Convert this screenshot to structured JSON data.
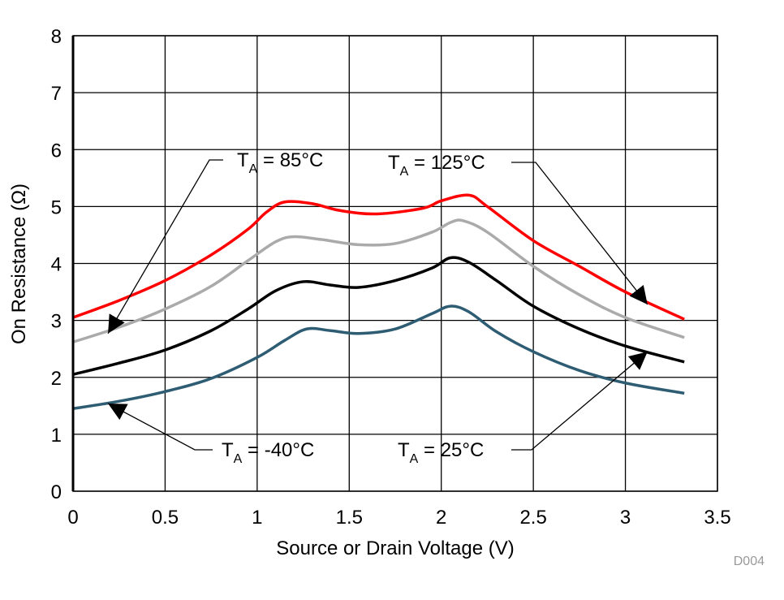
{
  "chart_data": {
    "type": "line",
    "title": "",
    "xlabel": "Source or Drain Voltage (V)",
    "ylabel": "On Resistance (Ω)",
    "xlim": [
      0,
      3.5
    ],
    "ylim": [
      0,
      8
    ],
    "xticks": [
      "0",
      "0.5",
      "1",
      "1.5",
      "2",
      "2.5",
      "3",
      "3.5"
    ],
    "yticks": [
      "0",
      "1",
      "2",
      "3",
      "4",
      "5",
      "6",
      "7",
      "8"
    ],
    "grid": true,
    "figure_code": "D004",
    "series": [
      {
        "name": "TA = 125°C",
        "color": "#ff0000",
        "x": [
          0,
          0.25,
          0.5,
          0.75,
          0.95,
          1.05,
          1.15,
          1.3,
          1.45,
          1.65,
          1.9,
          2.0,
          2.15,
          2.25,
          2.5,
          2.75,
          3.0,
          3.32
        ],
        "y": [
          3.05,
          3.35,
          3.7,
          4.15,
          4.6,
          4.9,
          5.08,
          5.05,
          4.93,
          4.87,
          4.97,
          5.1,
          5.2,
          5.0,
          4.4,
          3.95,
          3.5,
          3.02
        ]
      },
      {
        "name": "TA = 85°C",
        "color": "#aaaaaa",
        "x": [
          0,
          0.25,
          0.5,
          0.75,
          0.95,
          1.1,
          1.2,
          1.35,
          1.55,
          1.75,
          1.95,
          2.05,
          2.12,
          2.25,
          2.5,
          2.75,
          3.0,
          3.32
        ],
        "y": [
          2.62,
          2.88,
          3.2,
          3.6,
          4.05,
          4.38,
          4.47,
          4.42,
          4.33,
          4.35,
          4.55,
          4.72,
          4.75,
          4.55,
          3.95,
          3.45,
          3.05,
          2.7
        ]
      },
      {
        "name": "TA = 25°C",
        "color": "#000000",
        "x": [
          0,
          0.25,
          0.5,
          0.75,
          0.95,
          1.1,
          1.25,
          1.4,
          1.55,
          1.75,
          1.95,
          2.05,
          2.15,
          2.3,
          2.5,
          2.75,
          3.0,
          3.32
        ],
        "y": [
          2.05,
          2.25,
          2.48,
          2.82,
          3.2,
          3.52,
          3.68,
          3.62,
          3.58,
          3.7,
          3.92,
          4.1,
          4.02,
          3.7,
          3.25,
          2.85,
          2.55,
          2.27
        ]
      },
      {
        "name": "TA = -40°C",
        "color": "#2d5c73",
        "x": [
          0,
          0.25,
          0.5,
          0.75,
          1.0,
          1.15,
          1.27,
          1.4,
          1.55,
          1.75,
          1.95,
          2.05,
          2.15,
          2.3,
          2.5,
          2.75,
          3.0,
          3.32
        ],
        "y": [
          1.45,
          1.58,
          1.75,
          1.98,
          2.35,
          2.65,
          2.85,
          2.82,
          2.77,
          2.85,
          3.12,
          3.25,
          3.15,
          2.8,
          2.45,
          2.12,
          1.9,
          1.72
        ]
      }
    ],
    "annotations": [
      {
        "label": "T",
        "sub": "A",
        "rest": " = 85°C",
        "series": "TA = 85°C",
        "target": [
          0.19,
          2.77
        ]
      },
      {
        "label": "T",
        "sub": "A",
        "rest": " = 125°C",
        "series": "TA = 125°C",
        "target": [
          3.12,
          3.28
        ]
      },
      {
        "label": "T",
        "sub": "A",
        "rest": " = -40°C",
        "series": "TA = -40°C",
        "target": [
          0.19,
          1.54
        ]
      },
      {
        "label": "T",
        "sub": "A",
        "rest": " = 25°C",
        "series": "TA = 25°C",
        "target": [
          3.12,
          2.45
        ]
      }
    ]
  }
}
